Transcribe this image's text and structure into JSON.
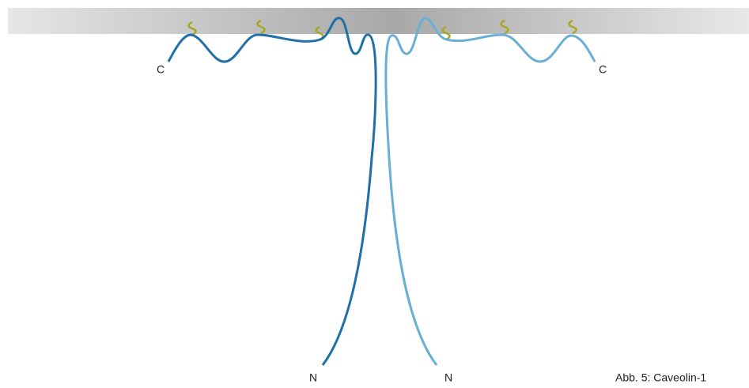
{
  "labels": [
    "C",
    "C",
    "N",
    "N"
  ],
  "caption": "Abb. 5: Caveolin-1"
}
